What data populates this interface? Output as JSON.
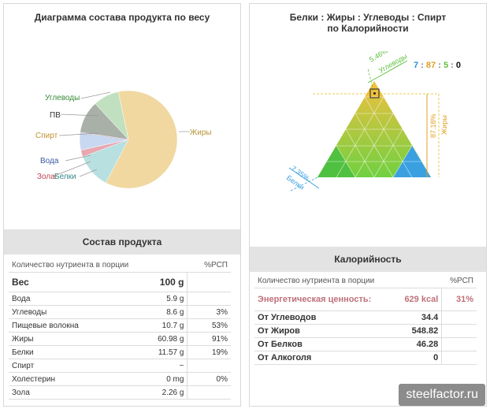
{
  "left_panel": {
    "title": "Диаграмма состава продукта по весу",
    "pie_labels": {
      "fat": "Жиры",
      "carbs": "Углеводы",
      "fiber": "ПВ",
      "alcohol": "Спирт",
      "water": "Вода",
      "ash": "Зола",
      "protein": "Белки"
    },
    "section_title": "Состав продукта",
    "table": {
      "header_name": "Количество нутриента в порции",
      "header_pct": "%РСП",
      "weight_label": "Вес",
      "weight_value": "100 g",
      "rows": [
        {
          "name": "Вода",
          "value": "5.9 g",
          "pct": ""
        },
        {
          "name": "Углеводы",
          "value": "8.6 g",
          "pct": "3%"
        },
        {
          "name": "Пищевые волокна",
          "value": "10.7 g",
          "pct": "53%"
        },
        {
          "name": "Жиры",
          "value": "60.98 g",
          "pct": "91%"
        },
        {
          "name": "Белки",
          "value": "11.57 g",
          "pct": "19%"
        },
        {
          "name": "Спирт",
          "value": "~",
          "pct": ""
        },
        {
          "name": "Холестерин",
          "value": "0 mg",
          "pct": "0%"
        },
        {
          "name": "Зола",
          "value": "2.26 g",
          "pct": ""
        }
      ]
    }
  },
  "chart_data": {
    "type": "pie",
    "title": "Диаграмма состава продукта по весу",
    "categories": [
      "Жиры",
      "Углеводы",
      "ПВ",
      "Спирт",
      "Вода",
      "Зола",
      "Белки"
    ],
    "values": [
      60.98,
      8.6,
      10.7,
      0,
      5.9,
      2.26,
      11.57
    ],
    "colors": [
      "#f0d8a0",
      "#c0e0c0",
      "#a8b0a8",
      "#ffffff",
      "#c8d8f0",
      "#e8a8b0",
      "#b8e0e0"
    ]
  },
  "right_panel": {
    "title_line1": "Белки : Жиры : Углеводы : Спирт",
    "title_line2": "по Калорийности",
    "ratio": {
      "protein": "7",
      "fat": "87",
      "carbs": "5",
      "alcohol": "0",
      "sep": ":"
    },
    "ratio_colors": {
      "protein": "#2a8fd0",
      "fat": "#e0a020",
      "carbs": "#60c040",
      "alcohol": "#111111"
    },
    "triangle_labels": {
      "carbs_pct": "5.46%",
      "carbs_name": "Углеводы",
      "fat_pct": "87.18%",
      "fat_name": "Жиры",
      "protein_pct": "7.35%",
      "protein_name": "Белки"
    },
    "section_title": "Калорийность",
    "header_name": "Количество нутриента в порции",
    "header_pct": "%РСП",
    "energy_label": "Энергетическая ценность:",
    "energy_value": "629 kcal",
    "energy_pct": "31%",
    "rows": [
      {
        "name": "От Углеводов",
        "value": "34.4"
      },
      {
        "name": "От Жиров",
        "value": "548.82"
      },
      {
        "name": "От Белков",
        "value": "46.28"
      },
      {
        "name": "От Алкоголя",
        "value": "0"
      }
    ]
  },
  "watermark": "steelfactor.ru"
}
